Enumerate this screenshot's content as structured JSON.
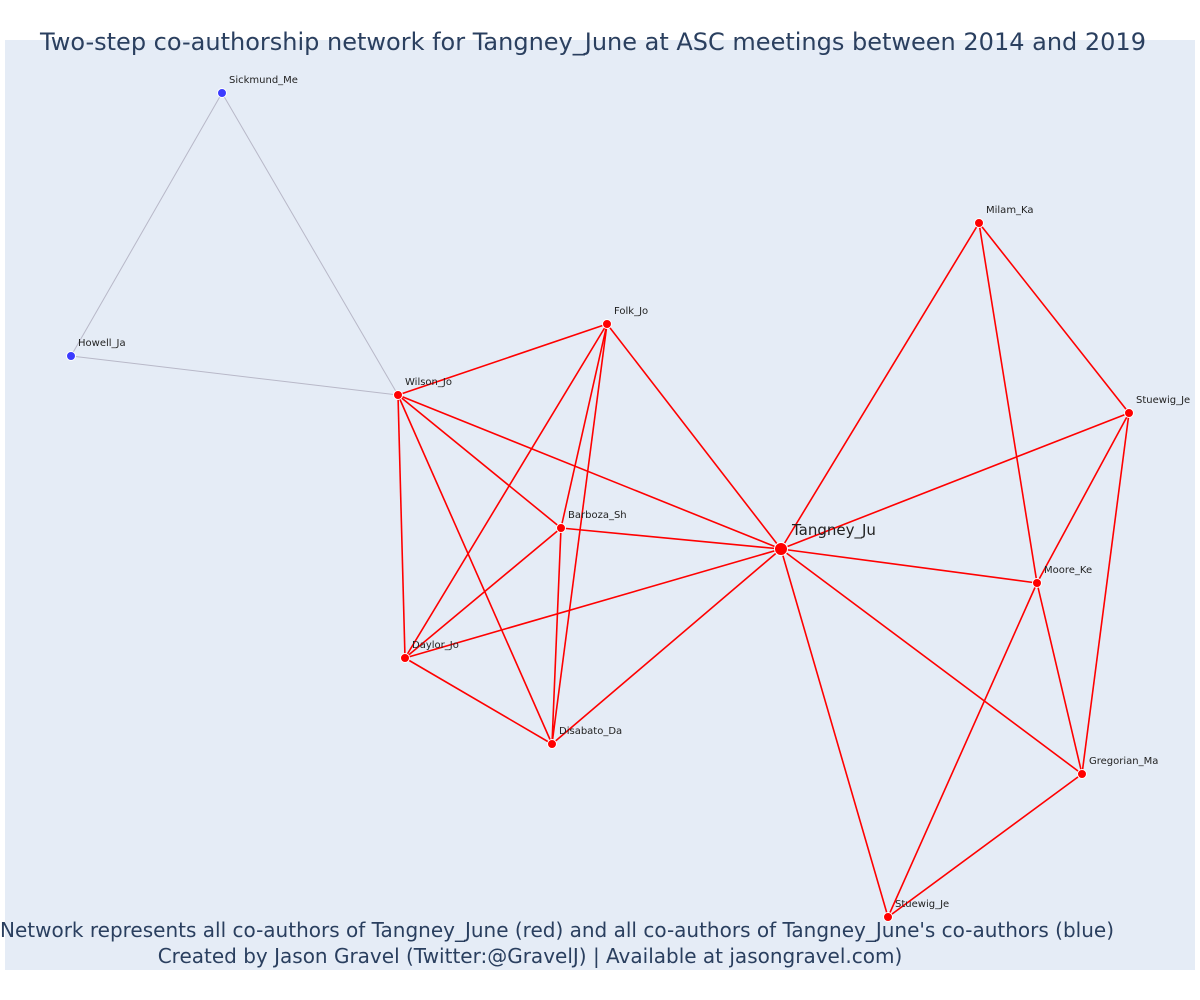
{
  "title": "Two-step co-authorship network for Tangney_June at ASC meetings between 2014 and 2019",
  "footer": {
    "line1": "Network represents all co-authors of Tangney_June (red) and all co-authors of Tangney_June's co-authors (blue)",
    "line2": "Created by Jason Gravel (Twitter:@GravelJ) | Available at jasongravel.com)"
  },
  "colors": {
    "background": "#e5ecf6",
    "direct_coauthor": "#ff0000",
    "second_step": "#3b3bff",
    "second_step_edge": "#b8b8c8"
  },
  "network": {
    "nodes": [
      {
        "id": "tangney",
        "label": "Tangney_Ju",
        "group": "direct",
        "hub": true
      },
      {
        "id": "sickmund",
        "label": "Sickmund_Me",
        "group": "second"
      },
      {
        "id": "howell",
        "label": "Howell_Ja",
        "group": "second"
      },
      {
        "id": "wilson",
        "label": "Wilson_Jo",
        "group": "direct"
      },
      {
        "id": "folk",
        "label": "Folk_Jo",
        "group": "direct"
      },
      {
        "id": "barboza",
        "label": "Barboza_Sh",
        "group": "direct"
      },
      {
        "id": "daylor",
        "label": "Daylor_Jo",
        "group": "direct"
      },
      {
        "id": "disabato",
        "label": "Disabato_Da",
        "group": "direct"
      },
      {
        "id": "milam",
        "label": "Milam_Ka",
        "group": "direct"
      },
      {
        "id": "stuewig1",
        "label": "Stuewig_Je",
        "group": "direct"
      },
      {
        "id": "moore",
        "label": "Moore_Ke",
        "group": "direct"
      },
      {
        "id": "gregorian",
        "label": "Gregorian_Ma",
        "group": "direct"
      },
      {
        "id": "stuewig2",
        "label": "Stuewig_Je",
        "group": "direct"
      }
    ],
    "edges": [
      [
        "sickmund",
        "howell"
      ],
      [
        "sickmund",
        "wilson"
      ],
      [
        "howell",
        "wilson"
      ],
      [
        "wilson",
        "folk"
      ],
      [
        "wilson",
        "barboza"
      ],
      [
        "wilson",
        "tangney"
      ],
      [
        "wilson",
        "daylor"
      ],
      [
        "wilson",
        "disabato"
      ],
      [
        "folk",
        "daylor"
      ],
      [
        "folk",
        "barboza"
      ],
      [
        "folk",
        "disabato"
      ],
      [
        "folk",
        "tangney"
      ],
      [
        "barboza",
        "tangney"
      ],
      [
        "barboza",
        "daylor"
      ],
      [
        "barboza",
        "disabato"
      ],
      [
        "daylor",
        "tangney"
      ],
      [
        "daylor",
        "disabato"
      ],
      [
        "disabato",
        "tangney"
      ],
      [
        "tangney",
        "milam"
      ],
      [
        "tangney",
        "stuewig1"
      ],
      [
        "tangney",
        "moore"
      ],
      [
        "tangney",
        "gregorian"
      ],
      [
        "tangney",
        "stuewig2"
      ],
      [
        "milam",
        "moore"
      ],
      [
        "milam",
        "stuewig1"
      ],
      [
        "stuewig1",
        "moore"
      ],
      [
        "stuewig1",
        "gregorian"
      ],
      [
        "moore",
        "gregorian"
      ],
      [
        "moore",
        "stuewig2"
      ],
      [
        "gregorian",
        "stuewig2"
      ]
    ]
  }
}
